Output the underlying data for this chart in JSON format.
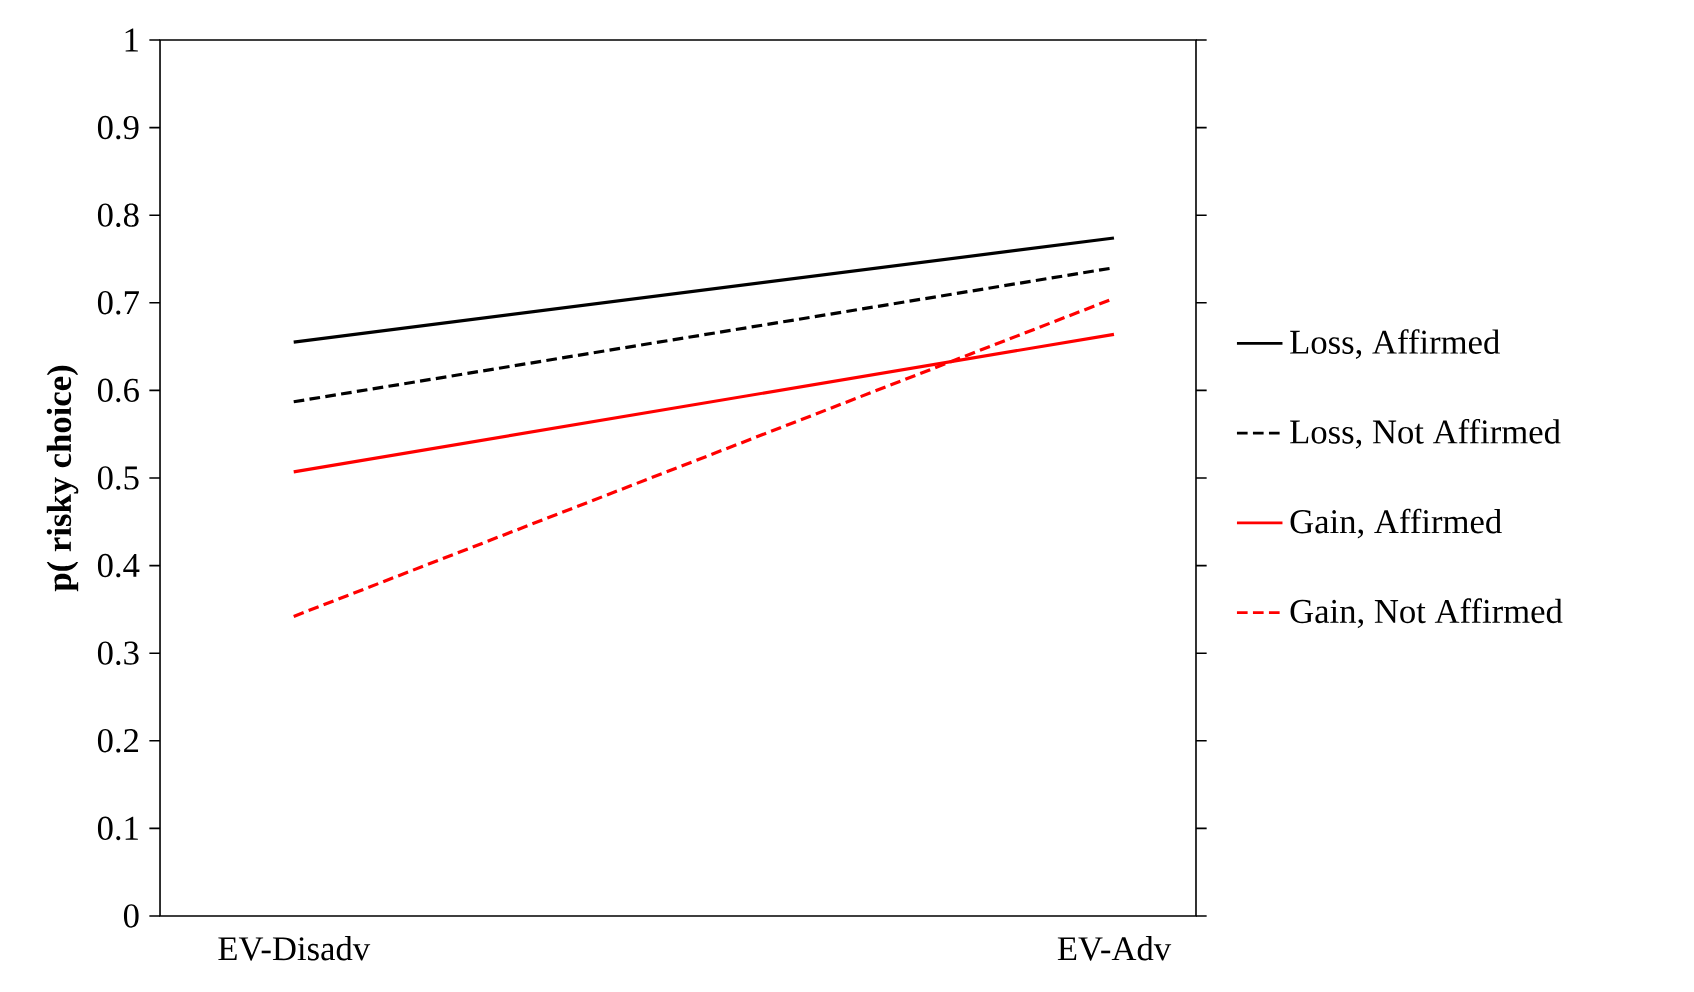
{
  "chart_data": {
    "type": "line",
    "ylabel": "p( risky choice)",
    "categories": [
      "EV-Disadv",
      "EV-Adv"
    ],
    "ylim": [
      0,
      1
    ],
    "yticks": [
      0,
      0.1,
      0.2,
      0.3,
      0.4,
      0.5,
      0.6,
      0.7,
      0.8,
      0.9,
      1
    ],
    "legend": "right",
    "marker": "none",
    "grid": false,
    "series": [
      {
        "name": "Loss, Affirmed",
        "color": "#000000",
        "line_style": "solid",
        "values": [
          0.655,
          0.774
        ]
      },
      {
        "name": "Loss, Not Affirmed",
        "color": "#000000",
        "line_style": "dashed",
        "values": [
          0.587,
          0.74
        ]
      },
      {
        "name": "Gain, Affirmed",
        "color": "#ff0000",
        "line_style": "solid",
        "values": [
          0.507,
          0.664
        ]
      },
      {
        "name": "Gain, Not Affirmed",
        "color": "#ff0000",
        "line_style": "dashed",
        "values": [
          0.342,
          0.705
        ]
      }
    ]
  }
}
